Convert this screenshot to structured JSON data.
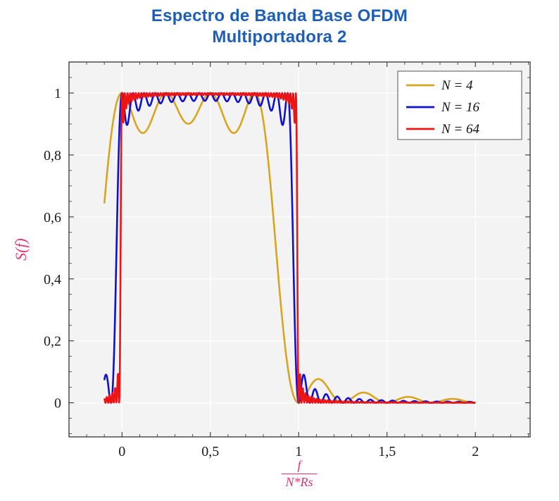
{
  "title": {
    "line1": "Espectro de Banda Base OFDM",
    "line2": "Multiportadora 2",
    "color": "#1d5fb8"
  },
  "axes": {
    "xlabel_numerator": "f",
    "xlabel_denominator": "N*Rs",
    "ylabel": "S(f)",
    "label_color": "#e5336f",
    "xlim": [
      -0.3,
      2.31
    ],
    "ylim": [
      -0.11,
      1.1
    ],
    "x_ticks": [
      {
        "v": 0,
        "label": "0"
      },
      {
        "v": 0.5,
        "label": "0,5"
      },
      {
        "v": 1,
        "label": "1"
      },
      {
        "v": 1.5,
        "label": "1,5"
      },
      {
        "v": 2,
        "label": "2"
      }
    ],
    "y_ticks": [
      {
        "v": 0,
        "label": "0"
      },
      {
        "v": 0.2,
        "label": "0,2"
      },
      {
        "v": 0.4,
        "label": "0,4"
      },
      {
        "v": 0.6,
        "label": "0,6"
      },
      {
        "v": 0.8,
        "label": "0,8"
      },
      {
        "v": 1,
        "label": "1"
      }
    ],
    "x_minor_step": 0.1,
    "y_minor_step": 0.05,
    "plot_background": "#f3f3f3",
    "grid_color": "#ffffff",
    "frame_color": "#333333",
    "tick_color": "#333333",
    "tick_label_color": "#1a1a1a"
  },
  "chart_data": {
    "type": "line",
    "title": "Espectro de Banda Base OFDM - Multiportadora 2",
    "xlabel": "f/(N*Rs)",
    "ylabel": "S(f)",
    "x_data_range": [
      -0.1,
      2.0
    ],
    "sample_step": 0.002,
    "passband": [
      0,
      1
    ],
    "passband_level": 1.0,
    "model": "S(u) = sum_{k=0..N-1} sinc^2(u*N - k), with sinc(x) = sin(pi*x)/(pi*x); normalized frequency u = f/(N*Rs)",
    "grid": true,
    "legend_position": "top-right",
    "series": [
      {
        "name": "N = 4",
        "N": 4,
        "color": "#d7a51f",
        "passband_ripple_min": 0.87,
        "first_sidelobe": 0.07
      },
      {
        "name": "N = 16",
        "N": 16,
        "color": "#0e10d2",
        "passband_ripple_min": 0.95,
        "first_sidelobe": 0.05
      },
      {
        "name": "N = 64",
        "N": 64,
        "color": "#ec1414",
        "passband_ripple_min": 0.99,
        "first_sidelobe": 0.03
      }
    ]
  }
}
